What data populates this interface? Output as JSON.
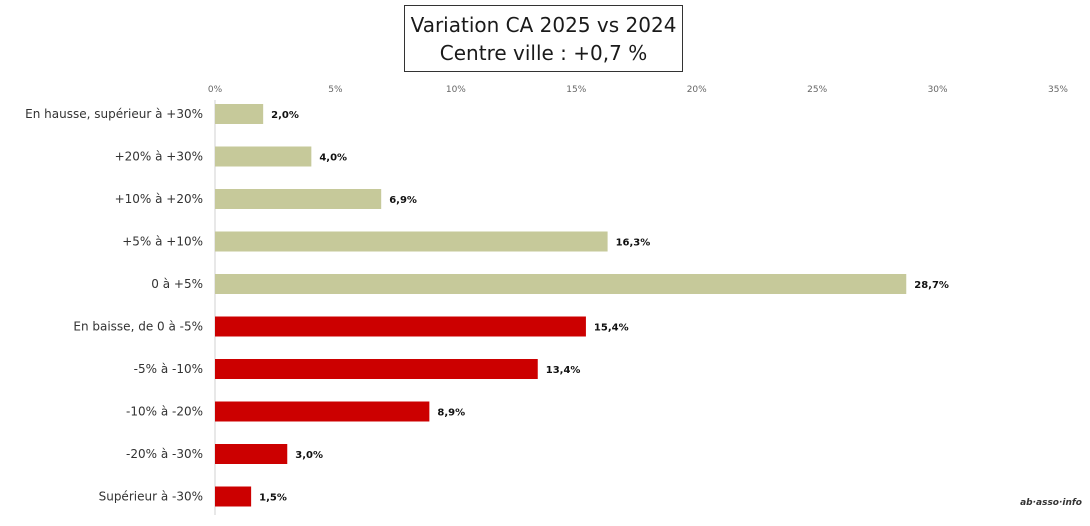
{
  "chart_data": {
    "type": "bar",
    "orientation": "horizontal",
    "title": "Variation CA 2025 vs 2024",
    "subtitle": "Centre ville  : +0,7 %",
    "categories": [
      "En hausse, supérieur à +30%",
      "+20% à +30%",
      "+10% à +20%",
      "+5% à +10%",
      "0 à +5%",
      "En baisse, de 0 à -5%",
      "-5% à -10%",
      "-10% à -20%",
      "-20% à -30%",
      "Supérieur à -30%"
    ],
    "values": [
      2.0,
      4.0,
      6.9,
      16.3,
      28.7,
      15.4,
      13.4,
      8.9,
      3.0,
      1.5
    ],
    "value_labels": [
      "2,0%",
      "4,0%",
      "6,9%",
      "16,3%",
      "28,7%",
      "15,4%",
      "13,4%",
      "8,9%",
      "3,0%",
      "1,5%"
    ],
    "bar_colors": [
      "#c6c99a",
      "#c6c99a",
      "#c6c99a",
      "#c6c99a",
      "#c6c99a",
      "#cc0000",
      "#cc0000",
      "#cc0000",
      "#cc0000",
      "#cc0000"
    ],
    "xlim": [
      0,
      35
    ],
    "x_ticks": [
      0,
      5,
      10,
      15,
      20,
      25,
      30,
      35
    ],
    "x_tick_labels": [
      "0%",
      "5%",
      "10%",
      "15%",
      "20%",
      "25%",
      "30%",
      "35%"
    ],
    "axis_position": "top",
    "grid": false,
    "legend": "none"
  },
  "watermark": "ab·asso·info"
}
